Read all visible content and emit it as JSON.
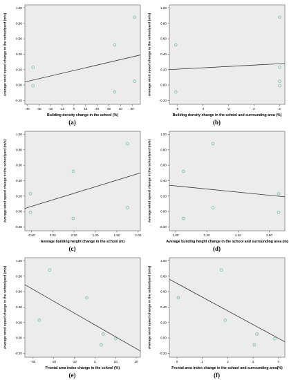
{
  "chart_data": [
    {
      "type": "scatter",
      "panel": "(a)",
      "xlabel": "Building density change in the school (%)",
      "ylabel": "Average wind speed change in the schoolyard (m/s)",
      "xlim": [
        -42,
        57
      ],
      "ylim": [
        -0.25,
        1.04
      ],
      "xticks": [
        -40,
        -30,
        -20,
        -10,
        0,
        10,
        20,
        30,
        40,
        50
      ],
      "xtick_labels": [
        "-40",
        "-30",
        "-20",
        "-10",
        "0",
        "10",
        "20",
        "30",
        "40",
        "50"
      ],
      "yticks": [
        -0.2,
        0.0,
        0.2,
        0.4,
        0.6,
        0.8,
        1.0
      ],
      "ytick_labels": [
        "-0.20",
        "0.00",
        "0.20",
        "0.40",
        "0.60",
        "0.80",
        "1.00"
      ],
      "points": [
        [
          -35,
          0.23
        ],
        [
          -35,
          -0.01
        ],
        [
          35,
          0.52
        ],
        [
          35,
          -0.09
        ],
        [
          52,
          0.88
        ],
        [
          52,
          0.05
        ]
      ],
      "fit_line": [
        [
          -42,
          0.04
        ],
        [
          57,
          0.39
        ]
      ],
      "grid": false
    },
    {
      "type": "scatter",
      "panel": "(b)",
      "xlabel": "Building density change in the school and surrounding area (%)",
      "ylabel": "Average wind speed change in the schoolyard (m/s)",
      "xlim": [
        -6.6,
        2.4
      ],
      "ylim": [
        -0.25,
        1.04
      ],
      "xticks": [
        -6,
        -4,
        -2,
        0,
        2
      ],
      "xtick_labels": [
        "-6",
        "-4",
        "-2",
        "0",
        "2"
      ],
      "yticks": [
        -0.2,
        0.0,
        0.2,
        0.4,
        0.6,
        0.8,
        1.0
      ],
      "ytick_labels": [
        "-0.20",
        "0.00",
        "0.20",
        "0.40",
        "0.60",
        "0.80",
        "1.00"
      ],
      "points": [
        [
          -6.1,
          0.52
        ],
        [
          -6.1,
          -0.09
        ],
        [
          2,
          0.88
        ],
        [
          2,
          0.23
        ],
        [
          2,
          0.05
        ],
        [
          2,
          -0.01
        ]
      ],
      "fit_line": [
        [
          -6.6,
          0.2
        ],
        [
          2.4,
          0.28
        ]
      ],
      "grid": false
    },
    {
      "type": "scatter",
      "panel": "(c)",
      "xlabel": "Average building height change  in the school (m)",
      "ylabel": "Average wind speed change in the schoolyard (m/s)",
      "xlim": [
        -0.65,
        2.05
      ],
      "ylim": [
        -0.25,
        1.04
      ],
      "xticks": [
        -0.5,
        0.0,
        0.5,
        1.0,
        1.5,
        2.0
      ],
      "xtick_labels": [
        "-0.50",
        "0.00",
        "0.50",
        "1.00",
        "1.50",
        "2.00"
      ],
      "yticks": [
        -0.2,
        0.0,
        0.2,
        0.4,
        0.6,
        0.8,
        1.0
      ],
      "ytick_labels": [
        "-0.20",
        "0.00",
        "0.20",
        "0.40",
        "0.60",
        "0.80",
        "1.00"
      ],
      "points": [
        [
          -0.52,
          0.23
        ],
        [
          -0.52,
          -0.01
        ],
        [
          0.48,
          0.52
        ],
        [
          0.48,
          -0.09
        ],
        [
          1.75,
          0.88
        ],
        [
          1.75,
          0.05
        ]
      ],
      "fit_line": [
        [
          -0.65,
          0.04
        ],
        [
          2.05,
          0.5
        ]
      ],
      "grid": false
    },
    {
      "type": "scatter",
      "panel": "(d)",
      "xlabel": "Average building height change in the school and surrounding area (m)",
      "ylabel": "Average wind speed change in the schoolyard (m/s)",
      "xlim": [
        1.96,
        2.7
      ],
      "ylim": [
        -0.25,
        1.04
      ],
      "xticks": [
        2.0,
        2.2,
        2.4,
        2.6
      ],
      "xtick_labels": [
        "2.00",
        "2.20",
        "2.40",
        "2.60"
      ],
      "yticks": [
        -0.2,
        0.0,
        0.2,
        0.4,
        0.6,
        0.8,
        1.0
      ],
      "ytick_labels": [
        "-0.20",
        "0.00",
        "0.20",
        "0.40",
        "0.60",
        "0.80",
        "1.00"
      ],
      "points": [
        [
          2.05,
          0.52
        ],
        [
          2.05,
          -0.09
        ],
        [
          2.24,
          0.88
        ],
        [
          2.24,
          0.05
        ],
        [
          2.66,
          0.23
        ],
        [
          2.66,
          -0.01
        ]
      ],
      "fit_line": [
        [
          1.96,
          0.34
        ],
        [
          2.7,
          0.19
        ]
      ],
      "grid": false
    },
    {
      "type": "scatter",
      "panel": "(e)",
      "xlabel": "Frontal area index change in the school  (%)",
      "ylabel": "Average wind speed change in the schoolyard (m/s)",
      "xlim": [
        -34,
        22
      ],
      "ylim": [
        -0.25,
        1.04
      ],
      "xticks": [
        -30,
        -20,
        -10,
        0,
        10,
        20
      ],
      "xtick_labels": [
        "-30",
        "-20",
        "-10",
        "0",
        "10",
        "20"
      ],
      "yticks": [
        -0.2,
        0.0,
        0.2,
        0.4,
        0.6,
        0.8,
        1.0
      ],
      "ytick_labels": [
        "-0.20",
        "0.00",
        "0.20",
        "0.40",
        "0.60",
        "0.80",
        "1.00"
      ],
      "points": [
        [
          -22,
          0.88
        ],
        [
          -27,
          0.23
        ],
        [
          -4,
          0.52
        ],
        [
          3,
          -0.09
        ],
        [
          4,
          0.05
        ],
        [
          10,
          -0.01
        ]
      ],
      "fit_line": [
        [
          -34,
          0.69
        ],
        [
          22,
          -0.17
        ]
      ],
      "grid": false
    },
    {
      "type": "scatter",
      "panel": "(f)",
      "xlabel": "Frontal area index change in the school and surrounding area(%)",
      "ylabel": "Average wind speed change in the schoolyard (m/s)",
      "xlim": [
        -0.3,
        4.25
      ],
      "ylim": [
        -0.25,
        1.04
      ],
      "xticks": [
        0,
        1,
        2,
        3,
        4
      ],
      "xtick_labels": [
        "0",
        "1",
        "2",
        "3",
        "4"
      ],
      "yticks": [
        -0.2,
        0.0,
        0.2,
        0.4,
        0.6,
        0.8,
        1.0
      ],
      "ytick_labels": [
        "-0.20",
        "0.00",
        "0.20",
        "0.40",
        "0.60",
        "0.80",
        "1.00"
      ],
      "points": [
        [
          0.05,
          0.52
        ],
        [
          1.75,
          0.88
        ],
        [
          1.9,
          0.23
        ],
        [
          3.05,
          -0.09
        ],
        [
          3.15,
          0.05
        ],
        [
          3.85,
          -0.01
        ]
      ],
      "fit_line": [
        [
          -0.3,
          0.76
        ],
        [
          4.25,
          -0.05
        ]
      ],
      "grid": false
    }
  ],
  "colors": {
    "plot_background": "#ececec",
    "marker_stroke": "#5fb79a",
    "fit_line": "#333333",
    "axis": "#555555",
    "text": "#000000"
  }
}
